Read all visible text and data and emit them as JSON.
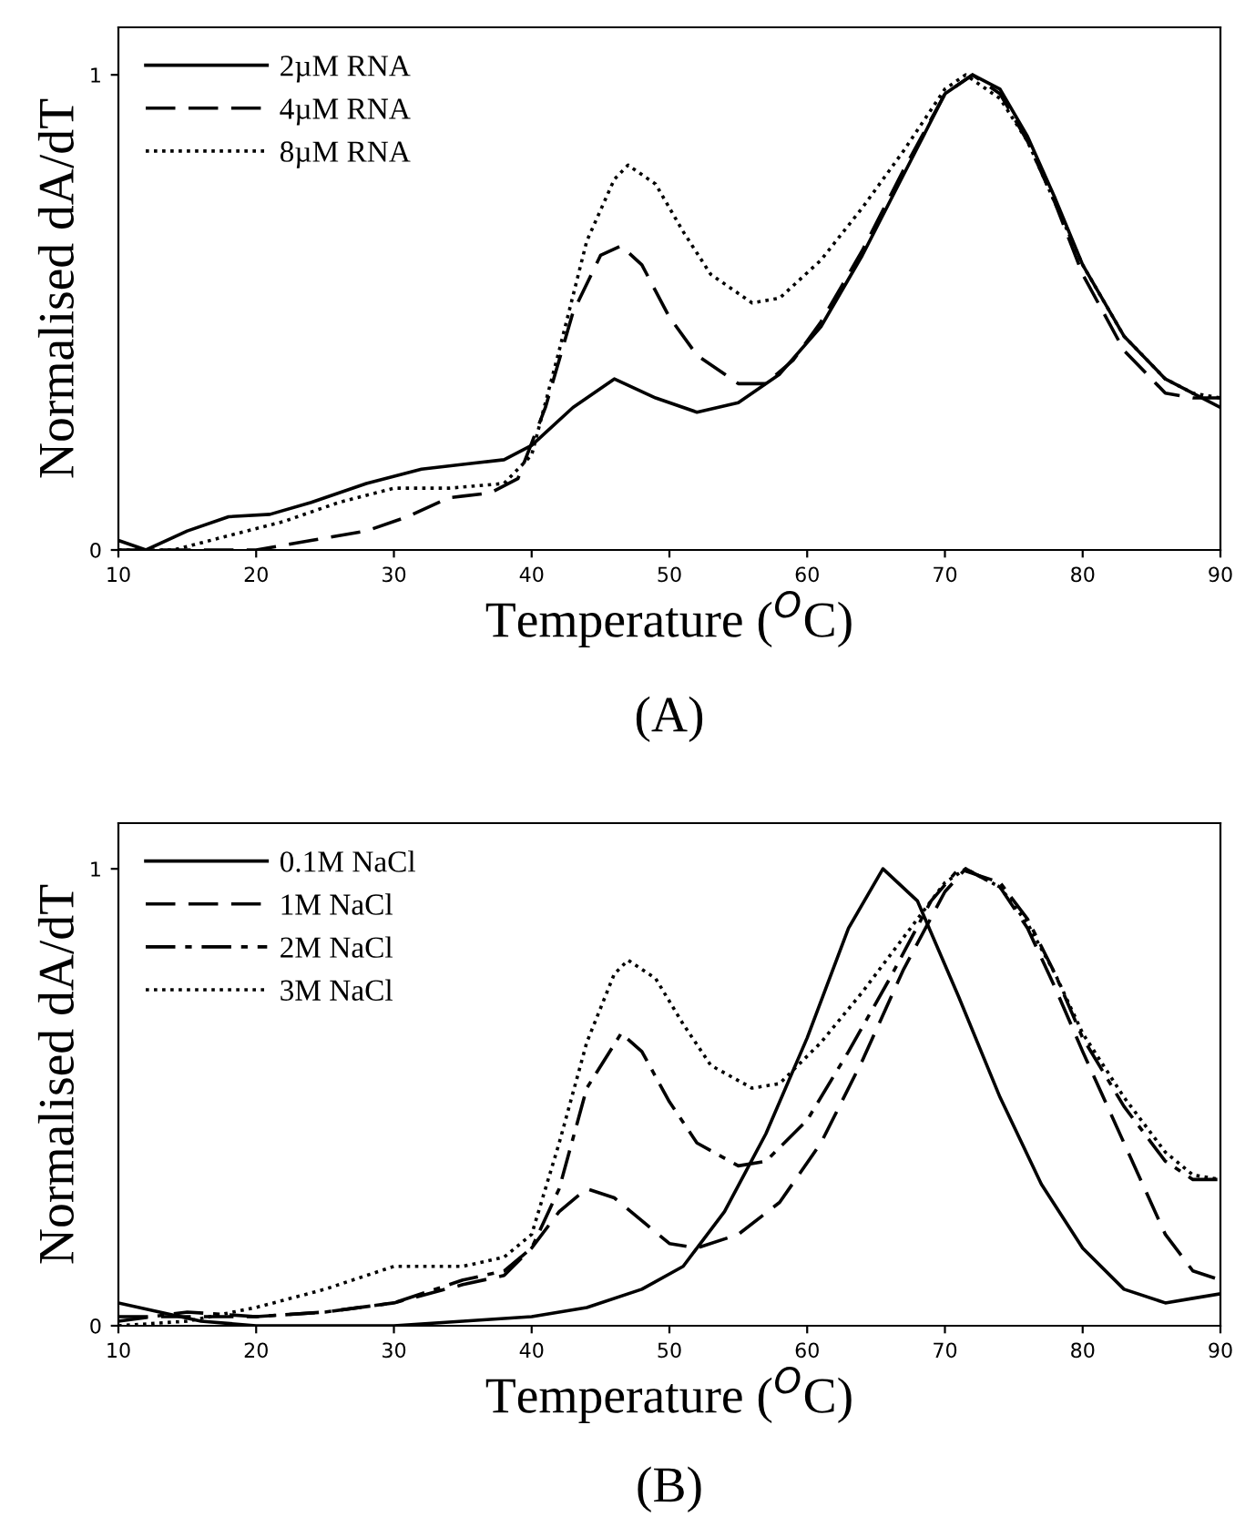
{
  "chart_data": [
    {
      "type": "line",
      "xlabel": "Temperature ($^{O}$C)",
      "ylabel": "Normalised dA/dT",
      "annotations": [
        "(A)"
      ],
      "xlim": [
        10,
        90
      ],
      "ylim": [
        0,
        1.1
      ],
      "xticks": [
        10,
        20,
        30,
        40,
        50,
        60,
        70,
        80,
        90
      ],
      "yticks": [
        0,
        1
      ],
      "grid": false,
      "legend": "top left",
      "marker": "none",
      "series": [
        {
          "name": "2µM RNA",
          "color": "#000000",
          "line_style": "solid",
          "x": [
            10,
            12,
            15,
            18,
            21,
            24,
            28,
            32,
            35,
            38,
            40,
            43,
            46,
            49,
            52,
            55,
            58,
            61,
            64,
            67,
            70,
            72,
            74,
            76,
            78,
            80,
            83,
            86,
            88,
            90
          ],
          "values": [
            0.02,
            0.0,
            0.04,
            0.07,
            0.075,
            0.1,
            0.14,
            0.17,
            0.18,
            0.19,
            0.22,
            0.3,
            0.36,
            0.32,
            0.29,
            0.31,
            0.37,
            0.47,
            0.62,
            0.79,
            0.96,
            1.0,
            0.97,
            0.87,
            0.74,
            0.6,
            0.45,
            0.36,
            0.33,
            0.3
          ]
        },
        {
          "name": "4µM RNA",
          "color": "#000000",
          "line_style": "dashed",
          "x": [
            10,
            15,
            20,
            24,
            28,
            31,
            34,
            37,
            39,
            41,
            43,
            45,
            46.5,
            48,
            50,
            52,
            55,
            57,
            59,
            61,
            64,
            67,
            70,
            72,
            74,
            76,
            78,
            80,
            83,
            86,
            88,
            90
          ],
          "values": [
            0.0,
            0.0,
            0.0,
            0.02,
            0.04,
            0.07,
            0.11,
            0.12,
            0.15,
            0.3,
            0.5,
            0.62,
            0.64,
            0.6,
            0.49,
            0.41,
            0.35,
            0.35,
            0.4,
            0.48,
            0.63,
            0.8,
            0.96,
            1.0,
            0.96,
            0.86,
            0.73,
            0.58,
            0.42,
            0.33,
            0.32,
            0.32
          ]
        },
        {
          "name": "8µM RNA",
          "color": "#000000",
          "line_style": "dotted",
          "x": [
            10,
            14,
            18,
            22,
            26,
            30,
            34,
            38,
            40,
            42,
            44,
            46,
            47,
            49,
            51,
            53,
            56,
            58,
            61,
            64,
            67,
            70,
            71.5,
            74,
            76,
            78,
            80,
            83,
            86,
            88,
            90
          ],
          "values": [
            0.0,
            0.0,
            0.03,
            0.06,
            0.1,
            0.13,
            0.13,
            0.14,
            0.2,
            0.42,
            0.65,
            0.78,
            0.81,
            0.77,
            0.67,
            0.58,
            0.52,
            0.53,
            0.61,
            0.72,
            0.84,
            0.97,
            1.0,
            0.95,
            0.86,
            0.73,
            0.6,
            0.45,
            0.36,
            0.33,
            0.32
          ]
        }
      ]
    },
    {
      "type": "line",
      "xlabel": "Temperature ($^{O}$C)",
      "ylabel": "Normalised dA/dT",
      "annotations": [
        "(B)"
      ],
      "xlim": [
        10,
        90
      ],
      "ylim": [
        0,
        1.1
      ],
      "xticks": [
        10,
        20,
        30,
        40,
        50,
        60,
        70,
        80,
        90
      ],
      "yticks": [
        0,
        1
      ],
      "grid": false,
      "legend": "top left",
      "marker": "none",
      "series": [
        {
          "name": "0.1M NaCl",
          "color": "#000000",
          "line_style": "solid",
          "x": [
            10,
            13,
            16,
            20,
            25,
            30,
            35,
            40,
            44,
            48,
            51,
            54,
            57,
            60,
            63,
            65.5,
            68,
            71,
            74,
            77,
            80,
            83,
            86,
            88,
            90
          ],
          "values": [
            0.05,
            0.03,
            0.01,
            0.0,
            0.0,
            0.0,
            0.01,
            0.02,
            0.04,
            0.08,
            0.13,
            0.25,
            0.42,
            0.63,
            0.87,
            1.0,
            0.93,
            0.72,
            0.5,
            0.31,
            0.17,
            0.08,
            0.05,
            0.06,
            0.07
          ]
        },
        {
          "name": "1M NaCl",
          "color": "#000000",
          "line_style": "dashed",
          "x": [
            10,
            15,
            20,
            25,
            30,
            35,
            38,
            40,
            42,
            44,
            46,
            48,
            50,
            52,
            55,
            58,
            61,
            64,
            67,
            70,
            71.5,
            74,
            76,
            78,
            80,
            83,
            86,
            88,
            90
          ],
          "values": [
            0.02,
            0.02,
            0.02,
            0.03,
            0.05,
            0.09,
            0.11,
            0.17,
            0.25,
            0.3,
            0.28,
            0.23,
            0.18,
            0.17,
            0.2,
            0.27,
            0.4,
            0.58,
            0.78,
            0.95,
            1.0,
            0.96,
            0.87,
            0.74,
            0.6,
            0.4,
            0.2,
            0.12,
            0.1
          ]
        },
        {
          "name": "2M NaCl",
          "color": "#000000",
          "line_style": "dashdot",
          "x": [
            10,
            15,
            20,
            25,
            30,
            35,
            38,
            40,
            42,
            44,
            46.5,
            48,
            50,
            52,
            55,
            57,
            60,
            63,
            66,
            69,
            71,
            74,
            76,
            78,
            80,
            83,
            86,
            88,
            90
          ],
          "values": [
            0.01,
            0.03,
            0.02,
            0.03,
            0.05,
            0.1,
            0.12,
            0.17,
            0.3,
            0.52,
            0.64,
            0.6,
            0.49,
            0.4,
            0.35,
            0.36,
            0.45,
            0.6,
            0.76,
            0.93,
            1.0,
            0.97,
            0.89,
            0.77,
            0.63,
            0.48,
            0.36,
            0.32,
            0.32
          ]
        },
        {
          "name": "3M NaCl",
          "color": "#000000",
          "line_style": "dotted",
          "x": [
            10,
            15,
            20,
            25,
            30,
            35,
            38,
            40,
            42,
            44,
            46,
            47,
            49,
            51,
            53,
            56,
            58,
            61,
            64,
            67,
            70,
            71.5,
            74,
            76,
            78,
            80,
            83,
            86,
            88,
            90
          ],
          "values": [
            0.0,
            0.01,
            0.04,
            0.08,
            0.13,
            0.13,
            0.15,
            0.2,
            0.4,
            0.62,
            0.77,
            0.8,
            0.76,
            0.66,
            0.57,
            0.52,
            0.53,
            0.62,
            0.73,
            0.85,
            0.97,
            1.0,
            0.96,
            0.88,
            0.77,
            0.64,
            0.5,
            0.38,
            0.33,
            0.32
          ]
        }
      ]
    }
  ]
}
